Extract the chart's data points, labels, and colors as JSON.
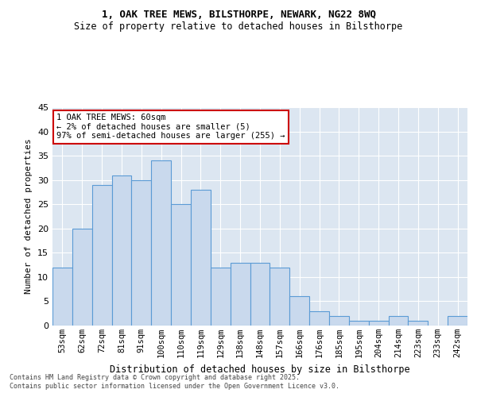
{
  "title1": "1, OAK TREE MEWS, BILSTHORPE, NEWARK, NG22 8WQ",
  "title2": "Size of property relative to detached houses in Bilsthorpe",
  "xlabel": "Distribution of detached houses by size in Bilsthorpe",
  "ylabel": "Number of detached properties",
  "categories": [
    "53sqm",
    "62sqm",
    "72sqm",
    "81sqm",
    "91sqm",
    "100sqm",
    "110sqm",
    "119sqm",
    "129sqm",
    "138sqm",
    "148sqm",
    "157sqm",
    "166sqm",
    "176sqm",
    "185sqm",
    "195sqm",
    "204sqm",
    "214sqm",
    "223sqm",
    "233sqm",
    "242sqm"
  ],
  "values": [
    12,
    20,
    29,
    31,
    30,
    34,
    25,
    28,
    12,
    13,
    13,
    12,
    6,
    3,
    2,
    1,
    1,
    2,
    1,
    0,
    2
  ],
  "bar_color": "#c9d9ed",
  "bar_edge_color": "#5b9bd5",
  "background_color": "#dce6f1",
  "annotation_text": "1 OAK TREE MEWS: 60sqm\n← 2% of detached houses are smaller (5)\n97% of semi-detached houses are larger (255) →",
  "annotation_box_edge": "#cc0000",
  "ylim": [
    0,
    45
  ],
  "yticks": [
    0,
    5,
    10,
    15,
    20,
    25,
    30,
    35,
    40,
    45
  ],
  "footer1": "Contains HM Land Registry data © Crown copyright and database right 2025.",
  "footer2": "Contains public sector information licensed under the Open Government Licence v3.0."
}
